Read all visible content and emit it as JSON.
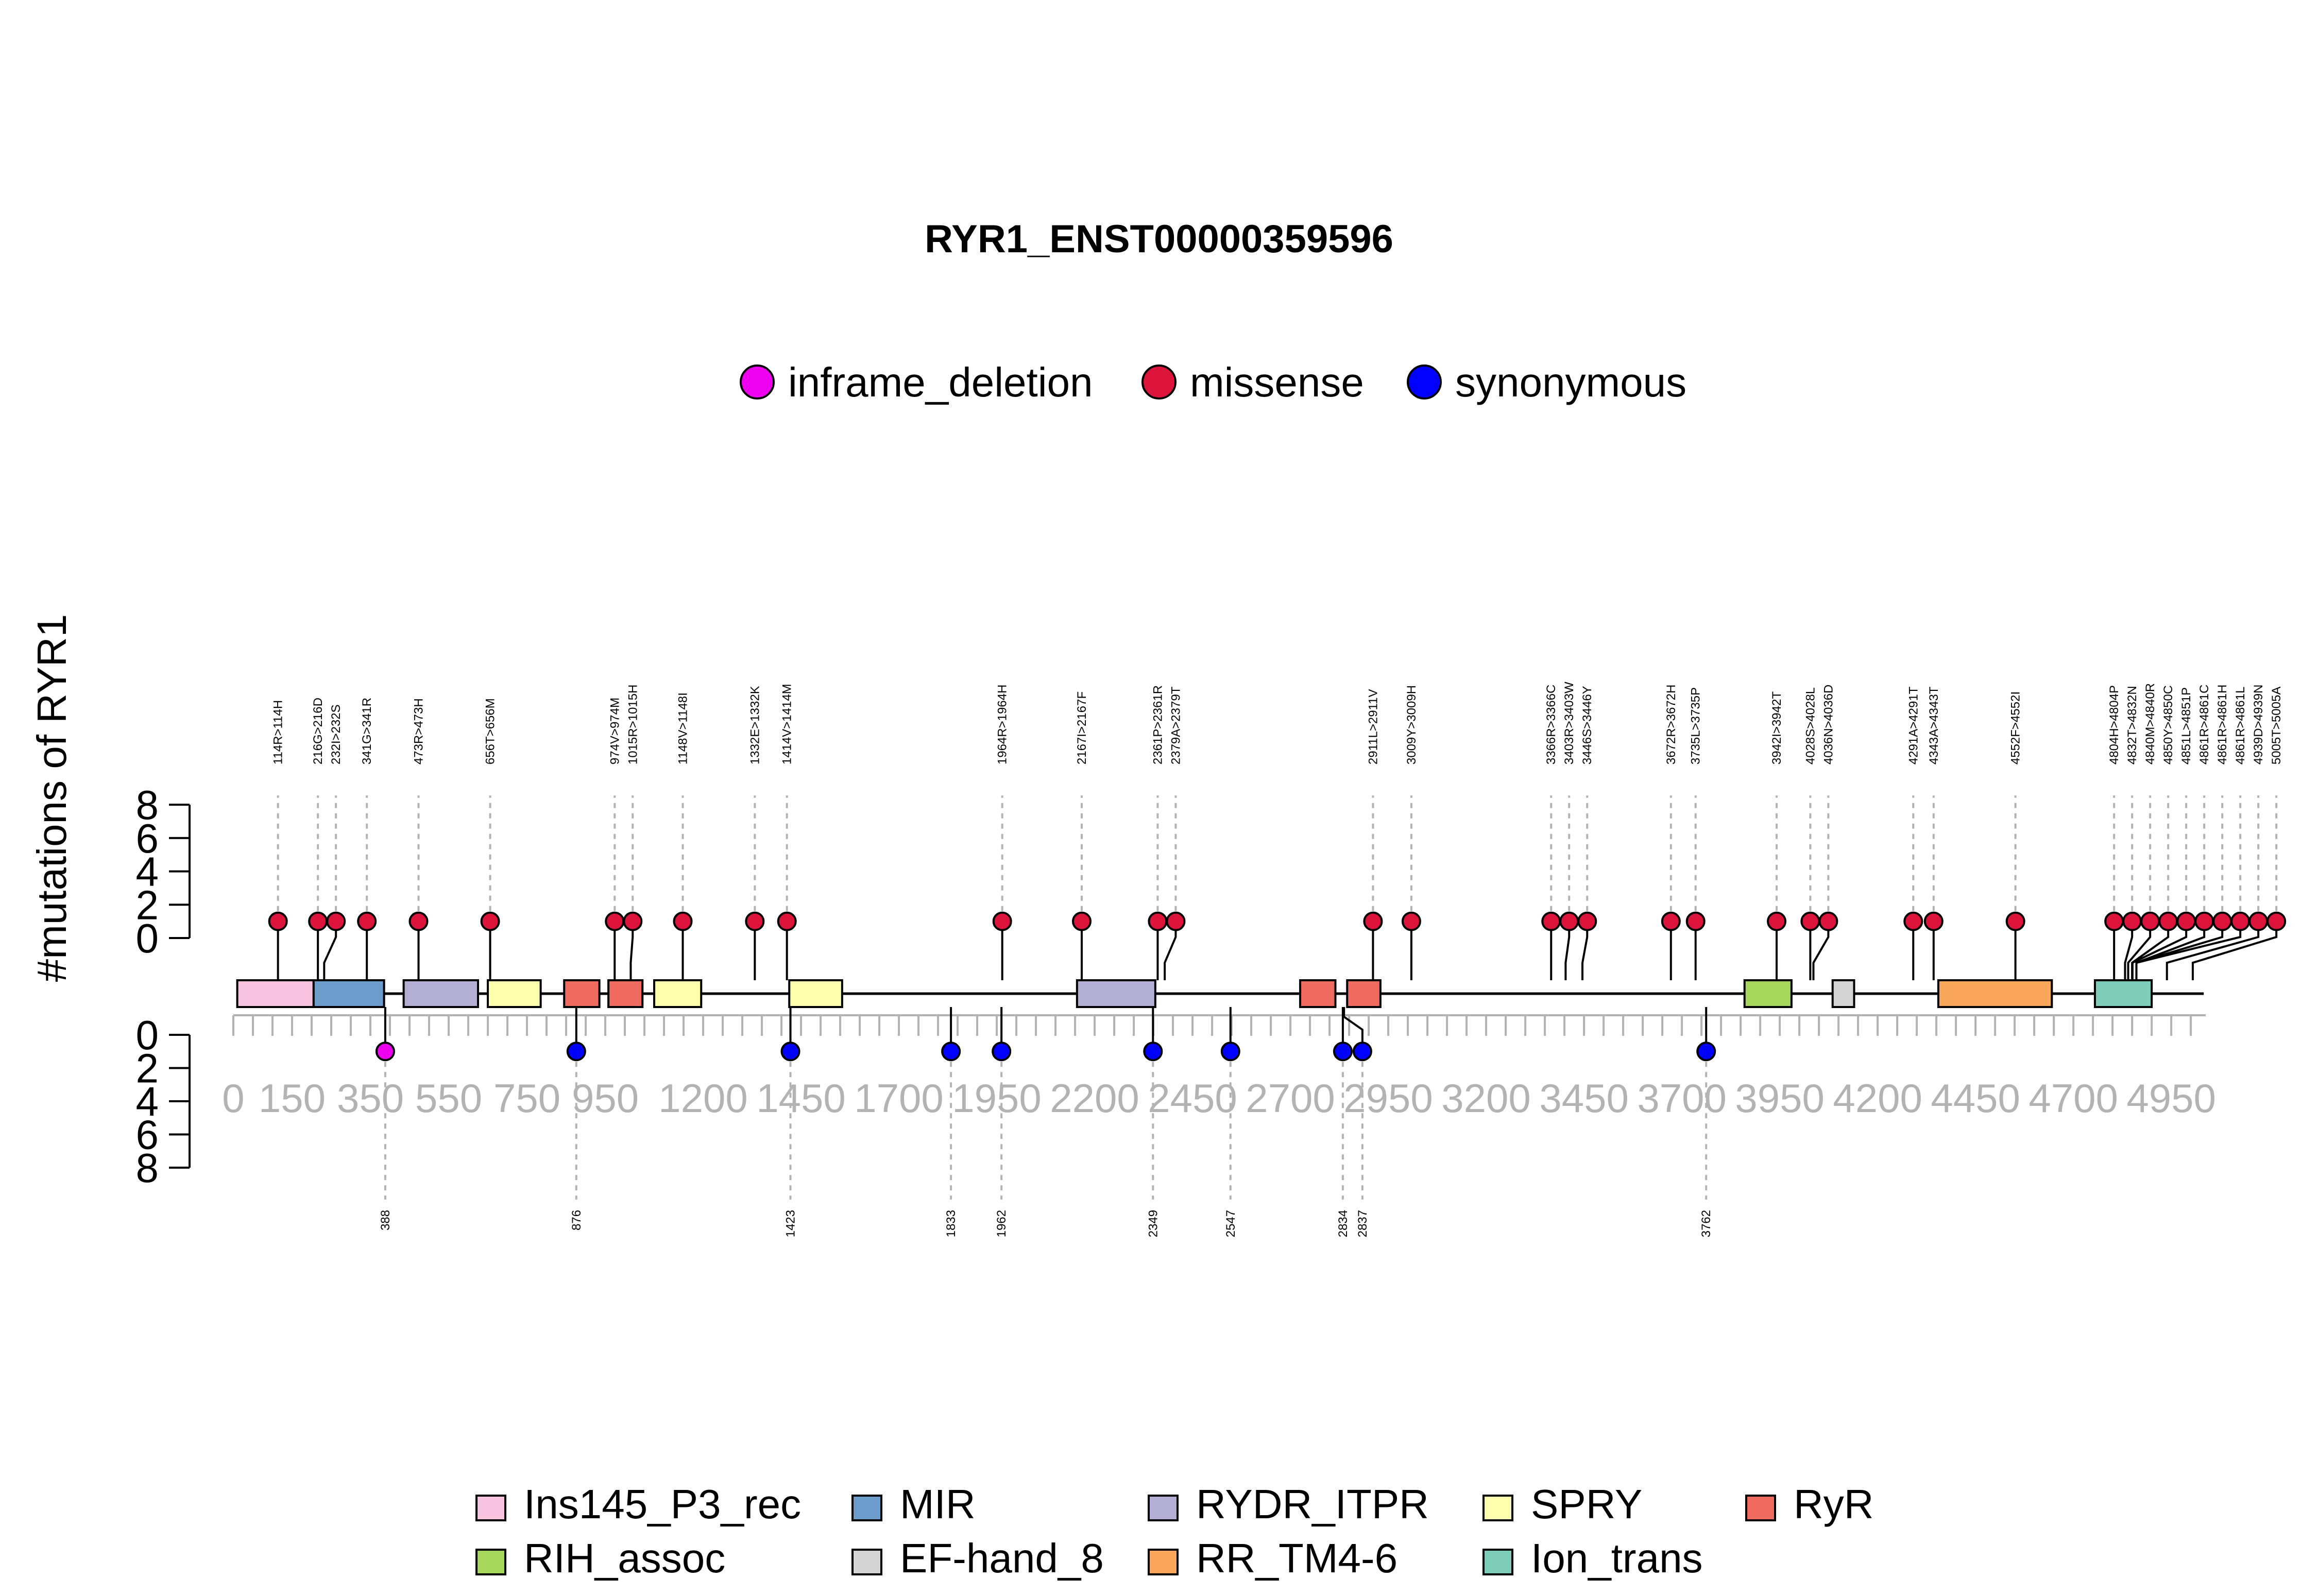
{
  "chart_data": {
    "type": "lollipop",
    "title": "RYR1_ENST00000359596",
    "ylabel": "#mutations of RYR1",
    "protein_length": 5038,
    "xlim": [
      0,
      5038
    ],
    "x_ticks": [
      0,
      150,
      350,
      550,
      750,
      950,
      1200,
      1450,
      1700,
      1950,
      2200,
      2450,
      2700,
      2950,
      3200,
      3450,
      3700,
      3950,
      4200,
      4450,
      4700,
      4950
    ],
    "x_tick_labels": [
      "0",
      "150",
      "350",
      "550",
      "750",
      "950",
      "1200",
      "1450",
      "1700",
      "1950",
      "2200",
      "2450",
      "2700",
      "2950",
      "3200",
      "3450",
      "3700",
      "3950",
      "4200",
      "4450",
      "4700",
      "4950"
    ],
    "y_ticks": [
      0,
      2,
      4,
      6,
      8
    ],
    "y_tick_labels": [
      "0",
      "2",
      "4",
      "6",
      "8"
    ],
    "ylim_top": [
      0,
      8
    ],
    "ylim_bottom": [
      0,
      8
    ],
    "mutation_type_legend": [
      {
        "name": "inframe_deletion",
        "color": "#EE00EE"
      },
      {
        "name": "missense",
        "color": "#DC143C"
      },
      {
        "name": "synonymous",
        "color": "#0000FF"
      }
    ],
    "domain_legend": [
      {
        "name": "Ins145_P3_rec",
        "color": "#F7C3DF"
      },
      {
        "name": "MIR",
        "color": "#6C9CC9"
      },
      {
        "name": "RYDR_ITPR",
        "color": "#B3AED4"
      },
      {
        "name": "SPRY",
        "color": "#FFFFAE"
      },
      {
        "name": "RyR",
        "color": "#F06B5F"
      },
      {
        "name": "RIH_assoc",
        "color": "#A6D65C"
      },
      {
        "name": "EF-hand_8",
        "color": "#D4D4D4"
      },
      {
        "name": "RR_TM4-6",
        "color": "#F9A75A"
      },
      {
        "name": "Ion_trans",
        "color": "#7ECDBB"
      }
    ],
    "domains": [
      {
        "name": "Ins145_P3_rec",
        "start": 10,
        "end": 205
      },
      {
        "name": "MIR",
        "start": 205,
        "end": 385
      },
      {
        "name": "RYDR_ITPR",
        "start": 435,
        "end": 625
      },
      {
        "name": "SPRY",
        "start": 650,
        "end": 785
      },
      {
        "name": "RyR",
        "start": 845,
        "end": 935
      },
      {
        "name": "RyR",
        "start": 958,
        "end": 1045
      },
      {
        "name": "SPRY",
        "start": 1075,
        "end": 1195
      },
      {
        "name": "SPRY",
        "start": 1420,
        "end": 1555
      },
      {
        "name": "RYDR_ITPR",
        "start": 2155,
        "end": 2355
      },
      {
        "name": "RyR",
        "start": 2725,
        "end": 2815
      },
      {
        "name": "RyR",
        "start": 2845,
        "end": 2930
      },
      {
        "name": "RIH_assoc",
        "start": 3860,
        "end": 3980
      },
      {
        "name": "EF-hand_8",
        "start": 4085,
        "end": 4140
      },
      {
        "name": "RR_TM4-6",
        "start": 4355,
        "end": 4645
      },
      {
        "name": "Ion_trans",
        "start": 4755,
        "end": 4900
      }
    ],
    "series": [
      {
        "name": "missense",
        "points": [
          {
            "x": 114,
            "y": 1,
            "label": "114R>114H"
          },
          {
            "x": 216,
            "y": 1,
            "label": "216G>216D"
          },
          {
            "x": 232,
            "y": 1,
            "label": "232I>232S"
          },
          {
            "x": 341,
            "y": 1,
            "label": "341G>341R"
          },
          {
            "x": 473,
            "y": 1,
            "label": "473R>473H"
          },
          {
            "x": 656,
            "y": 1,
            "label": "656T>656M"
          },
          {
            "x": 974,
            "y": 1,
            "label": "974V>974M"
          },
          {
            "x": 1015,
            "y": 1,
            "label": "1015R>1015H"
          },
          {
            "x": 1148,
            "y": 1,
            "label": "1148V>1148I"
          },
          {
            "x": 1332,
            "y": 1,
            "label": "1332E>1332K"
          },
          {
            "x": 1414,
            "y": 1,
            "label": "1414V>1414M"
          },
          {
            "x": 1964,
            "y": 1,
            "label": "1964R>1964H"
          },
          {
            "x": 2167,
            "y": 1,
            "label": "2167I>2167F"
          },
          {
            "x": 2361,
            "y": 1,
            "label": "2361P>2361R"
          },
          {
            "x": 2379,
            "y": 1,
            "label": "2379A>2379T"
          },
          {
            "x": 2911,
            "y": 1,
            "label": "2911L>2911V"
          },
          {
            "x": 3009,
            "y": 1,
            "label": "3009Y>3009H"
          },
          {
            "x": 3366,
            "y": 1,
            "label": "3366R>3366C"
          },
          {
            "x": 3403,
            "y": 1,
            "label": "3403R>3403W"
          },
          {
            "x": 3446,
            "y": 1,
            "label": "3446S>3446Y"
          },
          {
            "x": 3672,
            "y": 1,
            "label": "3672R>3672H"
          },
          {
            "x": 3735,
            "y": 1,
            "label": "3735L>3735P"
          },
          {
            "x": 3942,
            "y": 1,
            "label": "3942I>3942T"
          },
          {
            "x": 4028,
            "y": 1,
            "label": "4028S>4028L"
          },
          {
            "x": 4036,
            "y": 1,
            "label": "4036N>4036D"
          },
          {
            "x": 4291,
            "y": 1,
            "label": "4291A>4291T"
          },
          {
            "x": 4343,
            "y": 1,
            "label": "4343A>4343T"
          },
          {
            "x": 4552,
            "y": 1,
            "label": "4552F>4552I"
          },
          {
            "x": 4804,
            "y": 1,
            "label": "4804H>4804P"
          },
          {
            "x": 4832,
            "y": 1,
            "label": "4832T>4832N"
          },
          {
            "x": 4840,
            "y": 1,
            "label": "4840M>4840R"
          },
          {
            "x": 4850,
            "y": 1,
            "label": "4850Y>4850C"
          },
          {
            "x": 4851,
            "y": 1,
            "label": "4851L>4851P"
          },
          {
            "x": 4861,
            "y": 1,
            "label": "4861R>4861C"
          },
          {
            "x": 4861,
            "y": 1,
            "label": "4861R>4861H"
          },
          {
            "x": 4861,
            "y": 1,
            "label": "4861R>4861L"
          },
          {
            "x": 4939,
            "y": 1,
            "label": "4939D>4939N"
          },
          {
            "x": 5005,
            "y": 1,
            "label": "5005T>5005A"
          }
        ]
      },
      {
        "name": "inframe_deletion",
        "points": [
          {
            "x": 388,
            "y": 1,
            "label": "388"
          }
        ]
      },
      {
        "name": "synonymous",
        "points": [
          {
            "x": 876,
            "y": 1,
            "label": "876"
          },
          {
            "x": 1423,
            "y": 1,
            "label": "1423"
          },
          {
            "x": 1833,
            "y": 1,
            "label": "1833"
          },
          {
            "x": 1962,
            "y": 1,
            "label": "1962"
          },
          {
            "x": 2349,
            "y": 1,
            "label": "2349"
          },
          {
            "x": 2547,
            "y": 1,
            "label": "2547"
          },
          {
            "x": 2834,
            "y": 1,
            "label": "2834"
          },
          {
            "x": 2837,
            "y": 1,
            "label": "2837"
          },
          {
            "x": 3762,
            "y": 1,
            "label": "3762"
          }
        ]
      }
    ]
  }
}
